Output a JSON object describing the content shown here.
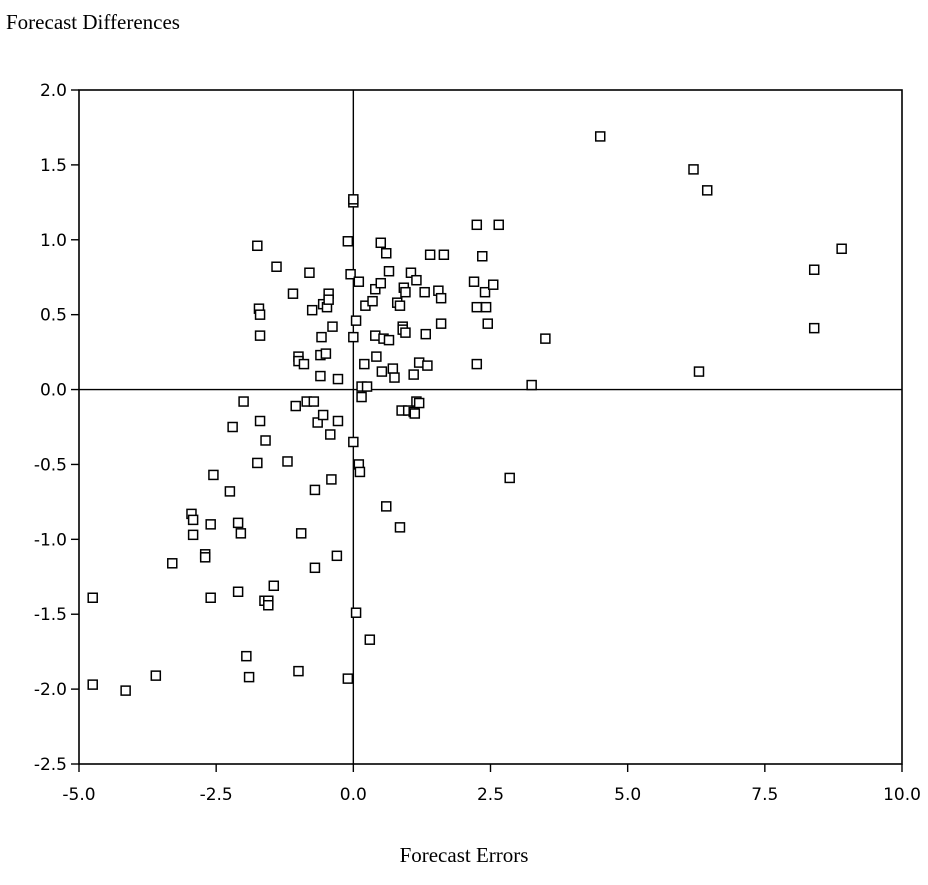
{
  "chart_data": {
    "type": "scatter",
    "ylabel": "Forecast Differences",
    "xlabel": "Forecast Errors",
    "xlim": [
      -5.0,
      10.0
    ],
    "ylim": [
      -2.5,
      2.0
    ],
    "xticks": [
      "-5.0",
      "-2.5",
      "0.0",
      "2.5",
      "5.0",
      "7.5",
      "10.0"
    ],
    "yticks": [
      "2.0",
      "1.5",
      "1.0",
      "0.5",
      "0.0",
      "-0.5",
      "-1.0",
      "-1.5",
      "-2.0",
      "-2.5"
    ],
    "marker": "hollow-square",
    "grid": false,
    "zero_lines": true,
    "points": [
      [
        -4.75,
        -1.39
      ],
      [
        -4.75,
        -1.97
      ],
      [
        -4.15,
        -2.01
      ],
      [
        -3.6,
        -1.91
      ],
      [
        -3.3,
        -1.16
      ],
      [
        -2.95,
        -0.83
      ],
      [
        -2.92,
        -0.87
      ],
      [
        -2.92,
        -0.97
      ],
      [
        -2.7,
        -1.1
      ],
      [
        -2.7,
        -1.12
      ],
      [
        -2.6,
        -0.9
      ],
      [
        -2.6,
        -1.39
      ],
      [
        -2.55,
        -0.57
      ],
      [
        -2.25,
        -0.68
      ],
      [
        -2.2,
        -0.25
      ],
      [
        -2.1,
        -0.89
      ],
      [
        -2.1,
        -1.35
      ],
      [
        -2.05,
        -0.96
      ],
      [
        -2.0,
        -0.08
      ],
      [
        -1.95,
        -1.78
      ],
      [
        -1.9,
        -1.92
      ],
      [
        -1.75,
        0.96
      ],
      [
        -1.75,
        -0.49
      ],
      [
        -1.72,
        0.54
      ],
      [
        -1.7,
        0.5
      ],
      [
        -1.7,
        0.36
      ],
      [
        -1.7,
        -0.21
      ],
      [
        -1.62,
        -1.41
      ],
      [
        -1.6,
        -0.34
      ],
      [
        -1.55,
        -1.41
      ],
      [
        -1.55,
        -1.44
      ],
      [
        -1.45,
        -1.31
      ],
      [
        -1.4,
        0.82
      ],
      [
        -1.2,
        -0.48
      ],
      [
        -1.1,
        0.64
      ],
      [
        -1.05,
        -0.11
      ],
      [
        -1.0,
        0.22
      ],
      [
        -1.0,
        0.19
      ],
      [
        -1.0,
        -1.88
      ],
      [
        -0.95,
        -0.96
      ],
      [
        -0.9,
        0.17
      ],
      [
        -0.85,
        -0.08
      ],
      [
        -0.8,
        0.78
      ],
      [
        -0.75,
        0.53
      ],
      [
        -0.72,
        -0.08
      ],
      [
        -0.7,
        -0.67
      ],
      [
        -0.7,
        -1.19
      ],
      [
        -0.65,
        -0.22
      ],
      [
        -0.6,
        0.09
      ],
      [
        -0.6,
        0.23
      ],
      [
        -0.58,
        0.35
      ],
      [
        -0.55,
        -0.17
      ],
      [
        -0.55,
        0.57
      ],
      [
        -0.5,
        0.24
      ],
      [
        -0.48,
        0.55
      ],
      [
        -0.45,
        0.64
      ],
      [
        -0.45,
        0.6
      ],
      [
        -0.42,
        -0.3
      ],
      [
        -0.4,
        -0.6
      ],
      [
        -0.38,
        0.42
      ],
      [
        -0.3,
        -1.11
      ],
      [
        -0.28,
        -0.21
      ],
      [
        -0.28,
        0.07
      ],
      [
        -0.1,
        0.99
      ],
      [
        -0.1,
        -1.93
      ],
      [
        -0.05,
        0.77
      ],
      [
        0.0,
        1.25
      ],
      [
        0.0,
        1.27
      ],
      [
        0.0,
        0.35
      ],
      [
        0.0,
        -0.35
      ],
      [
        0.05,
        0.46
      ],
      [
        0.05,
        -1.49
      ],
      [
        0.1,
        0.72
      ],
      [
        0.1,
        -0.5
      ],
      [
        0.12,
        -0.55
      ],
      [
        0.15,
        0.02
      ],
      [
        0.15,
        -0.05
      ],
      [
        0.2,
        0.17
      ],
      [
        0.22,
        0.56
      ],
      [
        0.25,
        0.02
      ],
      [
        0.3,
        -1.67
      ],
      [
        0.35,
        0.59
      ],
      [
        0.4,
        0.67
      ],
      [
        0.4,
        0.36
      ],
      [
        0.42,
        0.22
      ],
      [
        0.5,
        0.98
      ],
      [
        0.5,
        0.71
      ],
      [
        0.52,
        0.12
      ],
      [
        0.55,
        0.34
      ],
      [
        0.6,
        0.91
      ],
      [
        0.6,
        -0.78
      ],
      [
        0.65,
        0.79
      ],
      [
        0.65,
        0.33
      ],
      [
        0.72,
        0.14
      ],
      [
        0.75,
        0.08
      ],
      [
        0.8,
        0.58
      ],
      [
        0.85,
        0.56
      ],
      [
        0.85,
        -0.92
      ],
      [
        0.88,
        -0.14
      ],
      [
        0.9,
        0.42
      ],
      [
        0.9,
        0.4
      ],
      [
        0.92,
        0.68
      ],
      [
        0.95,
        0.65
      ],
      [
        0.95,
        0.38
      ],
      [
        1.0,
        -0.14
      ],
      [
        1.05,
        0.78
      ],
      [
        1.1,
        0.1
      ],
      [
        1.1,
        -0.15
      ],
      [
        1.12,
        -0.16
      ],
      [
        1.15,
        0.73
      ],
      [
        1.15,
        -0.08
      ],
      [
        1.2,
        0.18
      ],
      [
        1.2,
        -0.09
      ],
      [
        1.3,
        0.65
      ],
      [
        1.32,
        0.37
      ],
      [
        1.35,
        0.16
      ],
      [
        1.4,
        0.9
      ],
      [
        1.55,
        0.66
      ],
      [
        1.6,
        0.61
      ],
      [
        1.6,
        0.44
      ],
      [
        1.65,
        0.9
      ],
      [
        2.2,
        0.72
      ],
      [
        2.25,
        1.1
      ],
      [
        2.25,
        0.55
      ],
      [
        2.25,
        0.17
      ],
      [
        2.35,
        0.89
      ],
      [
        2.4,
        0.65
      ],
      [
        2.42,
        0.55
      ],
      [
        2.45,
        0.44
      ],
      [
        2.55,
        0.7
      ],
      [
        2.65,
        1.1
      ],
      [
        2.85,
        -0.59
      ],
      [
        3.25,
        0.03
      ],
      [
        3.5,
        0.34
      ],
      [
        4.5,
        1.69
      ],
      [
        6.2,
        1.47
      ],
      [
        6.3,
        0.12
      ],
      [
        6.45,
        1.33
      ],
      [
        8.4,
        0.8
      ],
      [
        8.4,
        0.41
      ],
      [
        8.9,
        0.94
      ]
    ]
  }
}
